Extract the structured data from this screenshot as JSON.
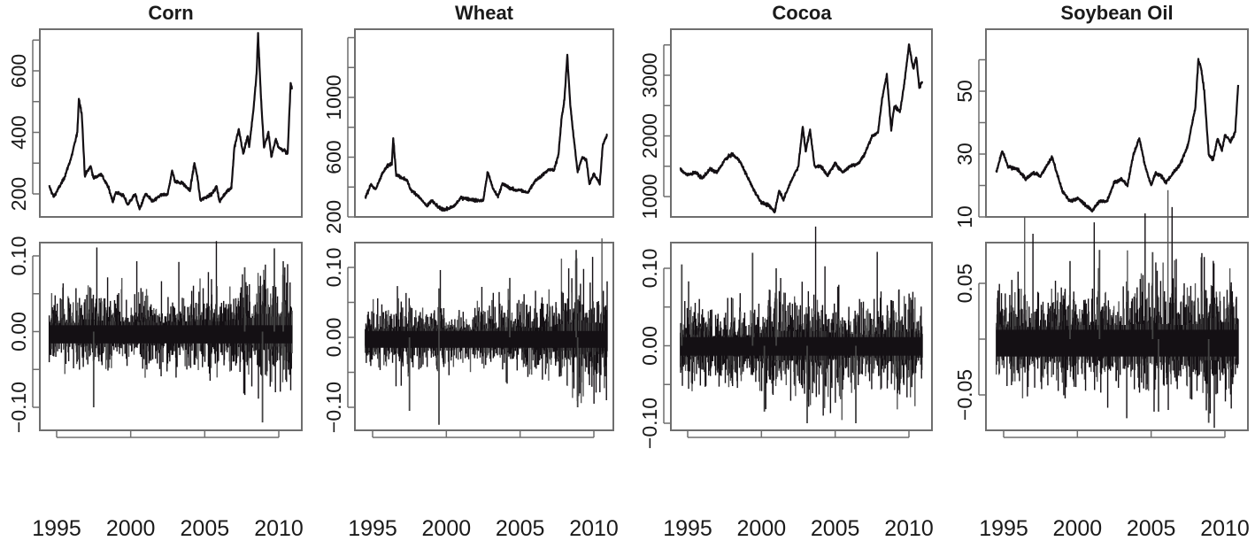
{
  "chart_data": [
    {
      "title": "Corn",
      "type": "line",
      "panel": "price",
      "xlim": [
        1994.5,
        2010.9
      ],
      "xticks": [
        "1995",
        "2000",
        "2005",
        "2010"
      ],
      "ylim": [
        150,
        720
      ],
      "yticks": [
        200,
        300,
        400,
        500,
        600,
        700
      ],
      "ytick_labels": [
        "200",
        "",
        "400",
        "",
        "600",
        ""
      ],
      "points": [
        [
          1994.5,
          225
        ],
        [
          1994.8,
          190
        ],
        [
          1995.5,
          250
        ],
        [
          1996.0,
          320
        ],
        [
          1996.4,
          400
        ],
        [
          1996.5,
          510
        ],
        [
          1996.7,
          460
        ],
        [
          1996.9,
          260
        ],
        [
          1997.3,
          290
        ],
        [
          1997.5,
          250
        ],
        [
          1998.0,
          265
        ],
        [
          1998.5,
          220
        ],
        [
          1998.8,
          175
        ],
        [
          1999,
          205
        ],
        [
          1999.5,
          195
        ],
        [
          1999.8,
          165
        ],
        [
          2000.3,
          200
        ],
        [
          2000.6,
          150
        ],
        [
          2001,
          200
        ],
        [
          2001.5,
          175
        ],
        [
          2002,
          195
        ],
        [
          2002.5,
          200
        ],
        [
          2002.8,
          275
        ],
        [
          2003,
          240
        ],
        [
          2003.5,
          235
        ],
        [
          2004,
          210
        ],
        [
          2004.3,
          300
        ],
        [
          2004.5,
          255
        ],
        [
          2004.7,
          180
        ],
        [
          2005.5,
          200
        ],
        [
          2005.8,
          225
        ],
        [
          2006,
          175
        ],
        [
          2006.5,
          210
        ],
        [
          2006.8,
          220
        ],
        [
          2007.0,
          350
        ],
        [
          2007.3,
          410
        ],
        [
          2007.6,
          330
        ],
        [
          2007.9,
          390
        ],
        [
          2008.0,
          350
        ],
        [
          2008.3,
          480
        ],
        [
          2008.5,
          590
        ],
        [
          2008.6,
          720
        ],
        [
          2008.8,
          510
        ],
        [
          2009.0,
          350
        ],
        [
          2009.3,
          400
        ],
        [
          2009.5,
          320
        ],
        [
          2009.8,
          380
        ],
        [
          2010.0,
          350
        ],
        [
          2010.4,
          340
        ],
        [
          2010.6,
          330
        ],
        [
          2010.8,
          560
        ],
        [
          2010.9,
          540
        ]
      ]
    },
    {
      "title": "Wheat",
      "type": "line",
      "panel": "price",
      "xlim": [
        1994.5,
        2010.9
      ],
      "xticks": [
        "1995",
        "2000",
        "2005",
        "2010"
      ],
      "ylim": [
        240,
        1280
      ],
      "yticks": [
        200,
        400,
        600,
        800,
        1000,
        1200,
        1400
      ],
      "ytick_labels": [
        "200",
        "",
        "600",
        "",
        "1000",
        "",
        ""
      ],
      "points": [
        [
          1994.5,
          330
        ],
        [
          1994.9,
          420
        ],
        [
          1995.2,
          380
        ],
        [
          1995.6,
          480
        ],
        [
          1996,
          540
        ],
        [
          1996.3,
          560
        ],
        [
          1996.4,
          730
        ],
        [
          1996.6,
          480
        ],
        [
          1997.3,
          450
        ],
        [
          1997.6,
          380
        ],
        [
          1998,
          350
        ],
        [
          1998.7,
          270
        ],
        [
          1999,
          310
        ],
        [
          1999.5,
          260
        ],
        [
          2000,
          250
        ],
        [
          2000.5,
          270
        ],
        [
          2001,
          330
        ],
        [
          2001.5,
          320
        ],
        [
          2002,
          310
        ],
        [
          2002.5,
          310
        ],
        [
          2002.8,
          500
        ],
        [
          2003.2,
          380
        ],
        [
          2003.5,
          340
        ],
        [
          2003.8,
          420
        ],
        [
          2004.2,
          400
        ],
        [
          2004.6,
          380
        ],
        [
          2005,
          380
        ],
        [
          2005.5,
          360
        ],
        [
          2006,
          440
        ],
        [
          2006.5,
          480
        ],
        [
          2007,
          520
        ],
        [
          2007.3,
          510
        ],
        [
          2007.6,
          620
        ],
        [
          2007.8,
          850
        ],
        [
          2008,
          980
        ],
        [
          2008.2,
          1280
        ],
        [
          2008.4,
          950
        ],
        [
          2008.6,
          760
        ],
        [
          2008.9,
          500
        ],
        [
          2009.2,
          600
        ],
        [
          2009.5,
          580
        ],
        [
          2009.7,
          420
        ],
        [
          2010,
          490
        ],
        [
          2010.4,
          420
        ],
        [
          2010.6,
          680
        ],
        [
          2010.9,
          750
        ]
      ]
    },
    {
      "title": "Cocoa",
      "type": "line",
      "panel": "price",
      "xlim": [
        1994.5,
        2010.9
      ],
      "xticks": [
        "1995",
        "2000",
        "2005",
        "2010"
      ],
      "ylim": [
        750,
        3550
      ],
      "yticks": [
        1000,
        1500,
        2000,
        2500,
        3000,
        3500
      ],
      "ytick_labels": [
        "1000",
        "",
        "2000",
        "",
        "3000",
        ""
      ],
      "points": [
        [
          1994.5,
          1450
        ],
        [
          1995,
          1350
        ],
        [
          1995.5,
          1400
        ],
        [
          1996,
          1300
        ],
        [
          1996.5,
          1450
        ],
        [
          1997,
          1400
        ],
        [
          1997.5,
          1600
        ],
        [
          1998,
          1700
        ],
        [
          1998.5,
          1600
        ],
        [
          1999,
          1350
        ],
        [
          1999.5,
          1100
        ],
        [
          2000,
          900
        ],
        [
          2000.5,
          850
        ],
        [
          2000.9,
          750
        ],
        [
          2001.2,
          1100
        ],
        [
          2001.5,
          950
        ],
        [
          2002,
          1250
        ],
        [
          2002.5,
          1500
        ],
        [
          2002.8,
          2150
        ],
        [
          2003.0,
          1750
        ],
        [
          2003.3,
          2100
        ],
        [
          2003.6,
          1500
        ],
        [
          2004,
          1500
        ],
        [
          2004.5,
          1350
        ],
        [
          2005,
          1550
        ],
        [
          2005.5,
          1400
        ],
        [
          2006,
          1500
        ],
        [
          2006.6,
          1550
        ],
        [
          2007.0,
          1700
        ],
        [
          2007.5,
          2000
        ],
        [
          2007.9,
          2050
        ],
        [
          2008.2,
          2650
        ],
        [
          2008.5,
          3000
        ],
        [
          2008.8,
          2100
        ],
        [
          2009.0,
          2500
        ],
        [
          2009.4,
          2400
        ],
        [
          2009.7,
          2900
        ],
        [
          2010.0,
          3500
        ],
        [
          2010.3,
          3100
        ],
        [
          2010.5,
          3300
        ],
        [
          2010.7,
          2800
        ],
        [
          2010.9,
          2900
        ]
      ]
    },
    {
      "title": "Soybean Oil",
      "type": "line",
      "panel": "price",
      "xlim": [
        1994.5,
        2010.9
      ],
      "xticks": [
        "1995",
        "2000",
        "2005",
        "2010"
      ],
      "ylim": [
        12,
        62
      ],
      "yticks": [
        10,
        20,
        30,
        40,
        50,
        60
      ],
      "ytick_labels": [
        "10",
        "",
        "30",
        "",
        "50",
        ""
      ],
      "points": [
        [
          1994.5,
          24
        ],
        [
          1994.9,
          31
        ],
        [
          1995.3,
          26
        ],
        [
          1996,
          25
        ],
        [
          1996.5,
          22
        ],
        [
          1997,
          24
        ],
        [
          1997.5,
          23
        ],
        [
          1998,
          27
        ],
        [
          1998.3,
          29
        ],
        [
          1998.6,
          24
        ],
        [
          1999,
          18
        ],
        [
          1999.5,
          15
        ],
        [
          2000,
          16
        ],
        [
          2000.5,
          14
        ],
        [
          2001,
          12
        ],
        [
          2001.5,
          15
        ],
        [
          2002,
          15
        ],
        [
          2002.5,
          21
        ],
        [
          2003,
          22
        ],
        [
          2003.4,
          20
        ],
        [
          2003.8,
          30
        ],
        [
          2004.2,
          35
        ],
        [
          2004.6,
          26
        ],
        [
          2005,
          20
        ],
        [
          2005.3,
          24
        ],
        [
          2005.7,
          23
        ],
        [
          2006,
          21
        ],
        [
          2006.5,
          24
        ],
        [
          2007,
          27
        ],
        [
          2007.5,
          33
        ],
        [
          2008,
          45
        ],
        [
          2008.2,
          60
        ],
        [
          2008.4,
          57
        ],
        [
          2008.6,
          50
        ],
        [
          2008.9,
          30
        ],
        [
          2009.2,
          28
        ],
        [
          2009.5,
          35
        ],
        [
          2009.8,
          31
        ],
        [
          2010.0,
          36
        ],
        [
          2010.4,
          34
        ],
        [
          2010.7,
          37
        ],
        [
          2010.9,
          52
        ]
      ]
    },
    {
      "title": "Corn",
      "type": "line",
      "panel": "returns",
      "xlim": [
        1994.5,
        2010.9
      ],
      "xticks": [
        "1995",
        "2000",
        "2005",
        "2010"
      ],
      "ytick_values": [
        -0.1,
        -0.05,
        0.0,
        0.05,
        0.1
      ],
      "ytick_labels": [
        "-0.10",
        "",
        "0.00",
        "",
        "0.10"
      ],
      "yearly_volatility": [
        0.012,
        0.013,
        0.018,
        0.016,
        0.015,
        0.014,
        0.014,
        0.013,
        0.014,
        0.015,
        0.017,
        0.015,
        0.017,
        0.02,
        0.026,
        0.022,
        0.021
      ],
      "extremes": [
        [
          1997.5,
          -0.1
        ],
        [
          2008.9,
          -0.12
        ],
        [
          2009.7,
          0.11
        ],
        [
          2007.7,
          0.085
        ],
        [
          2010.3,
          0.093
        ]
      ]
    },
    {
      "title": "Wheat",
      "type": "line",
      "panel": "returns",
      "xlim": [
        1994.5,
        2010.9
      ],
      "xticks": [
        "1995",
        "2000",
        "2005",
        "2010"
      ],
      "ytick_values": [
        -0.1,
        -0.05,
        0.0,
        0.05,
        0.1
      ],
      "ytick_labels": [
        "-0.10",
        "",
        "0.00",
        "",
        "0.10"
      ],
      "yearly_volatility": [
        0.013,
        0.014,
        0.017,
        0.015,
        0.014,
        0.013,
        0.012,
        0.012,
        0.014,
        0.016,
        0.016,
        0.015,
        0.017,
        0.021,
        0.027,
        0.023,
        0.022
      ],
      "extremes": [
        [
          1997.5,
          -0.105
        ],
        [
          1999.5,
          -0.125
        ],
        [
          1999.5,
          0.07
        ],
        [
          2008.8,
          0.125
        ],
        [
          2008.9,
          -0.1
        ],
        [
          2004.3,
          0.085
        ]
      ]
    },
    {
      "title": "Cocoa",
      "type": "line",
      "panel": "returns",
      "xlim": [
        1994.5,
        2010.9
      ],
      "xticks": [
        "1995",
        "2000",
        "2005",
        "2010"
      ],
      "ytick_values": [
        -0.1,
        -0.05,
        0.0,
        0.05,
        0.1
      ],
      "ytick_labels": [
        "-0.10",
        "",
        "0.00",
        "",
        "0.10"
      ],
      "yearly_volatility": [
        0.016,
        0.015,
        0.014,
        0.015,
        0.015,
        0.018,
        0.021,
        0.021,
        0.02,
        0.021,
        0.019,
        0.017,
        0.016,
        0.017,
        0.022,
        0.02,
        0.017
      ],
      "extremes": [
        [
          1994.6,
          0.105
        ],
        [
          1999.4,
          0.12
        ],
        [
          2001.0,
          0.1
        ],
        [
          2003.1,
          -0.1
        ],
        [
          2006.4,
          -0.1
        ],
        [
          2000.2,
          -0.085
        ]
      ]
    },
    {
      "title": "Soybean Oil",
      "type": "line",
      "panel": "returns",
      "xlim": [
        1994.5,
        2010.9
      ],
      "xticks": [
        "1995",
        "2000",
        "2005",
        "2010"
      ],
      "ytick_values": [
        -0.05,
        0.0,
        0.05
      ],
      "ytick_labels": [
        "-0.05",
        "",
        "0.05"
      ],
      "yearly_volatility": [
        0.012,
        0.013,
        0.012,
        0.012,
        0.013,
        0.014,
        0.014,
        0.014,
        0.014,
        0.015,
        0.016,
        0.015,
        0.014,
        0.015,
        0.021,
        0.017,
        0.015
      ],
      "extremes": [
        [
          2001.5,
          0.08
        ],
        [
          2005.1,
          0.078
        ],
        [
          2008.9,
          -0.075
        ],
        [
          1999.5,
          0.07
        ],
        [
          2005.5,
          -0.065
        ]
      ]
    }
  ],
  "colors": {
    "series": "#141014",
    "frame": "#6e6e6e",
    "text": "#1a1a1a"
  }
}
